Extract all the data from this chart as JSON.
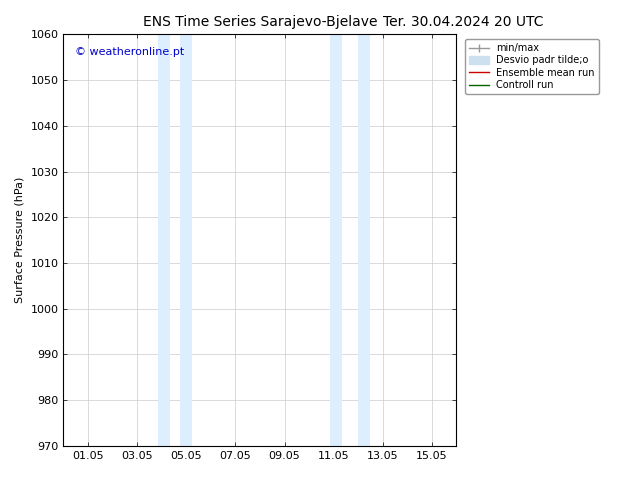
{
  "title": "ENS Time Series Sarajevo-Bjelave",
  "title_date": "Ter. 30.04.2024 20 UTC",
  "ylabel": "Surface Pressure (hPa)",
  "ylim": [
    970,
    1060
  ],
  "yticks": [
    970,
    980,
    990,
    1000,
    1010,
    1020,
    1030,
    1040,
    1050,
    1060
  ],
  "xtick_labels": [
    "01.05",
    "03.05",
    "05.05",
    "07.05",
    "09.05",
    "11.05",
    "13.05",
    "15.05"
  ],
  "xtick_positions": [
    1,
    3,
    5,
    7,
    9,
    11,
    13,
    15
  ],
  "xlim": [
    0,
    16
  ],
  "shaded_regions": [
    {
      "xstart": 3.85,
      "xend": 4.35,
      "color": "#ddeeff"
    },
    {
      "xstart": 4.75,
      "xend": 5.25,
      "color": "#ddeeff"
    },
    {
      "xstart": 10.85,
      "xend": 11.35,
      "color": "#ddeeff"
    },
    {
      "xstart": 12.0,
      "xend": 12.5,
      "color": "#ddeeff"
    }
  ],
  "watermark": "© weatheronline.pt",
  "watermark_color": "#0000cc",
  "legend_items": [
    {
      "label": "min/max",
      "color": "#999999",
      "lw": 1.0,
      "style": "solid"
    },
    {
      "label": "Desvio padr tilde;o",
      "color": "#cce0f0",
      "lw": 8,
      "style": "solid"
    },
    {
      "label": "Ensemble mean run",
      "color": "#cc0000",
      "lw": 1.0,
      "style": "solid"
    },
    {
      "label": "Controll run",
      "color": "#006600",
      "lw": 1.0,
      "style": "solid"
    }
  ],
  "bg_color": "#ffffff",
  "grid_color": "#cccccc",
  "title_fontsize": 10,
  "tick_fontsize": 8,
  "ylabel_fontsize": 8,
  "watermark_fontsize": 8,
  "legend_fontsize": 7
}
